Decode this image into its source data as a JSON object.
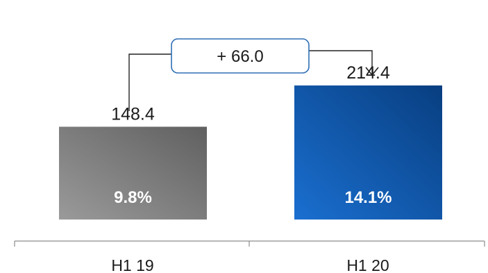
{
  "chart_data": {
    "type": "bar",
    "categories": [
      "H1 19",
      "H1 20"
    ],
    "values": [
      148.4,
      214.4
    ],
    "value_labels": [
      "148.4",
      "214.4"
    ],
    "inner_labels": [
      "9.8%",
      "14.1%"
    ],
    "delta_label": "+ 66.0",
    "ylim": [
      0,
      240
    ],
    "grid": false,
    "colors": {
      "bar_1_light": "#9a9a9a",
      "bar_1_dark": "#606060",
      "bar_2_light": "#1a6fd0",
      "bar_2_dark": "#083e80",
      "callout_border": "#2f6fb5",
      "axis": "#8c8c8c"
    }
  }
}
